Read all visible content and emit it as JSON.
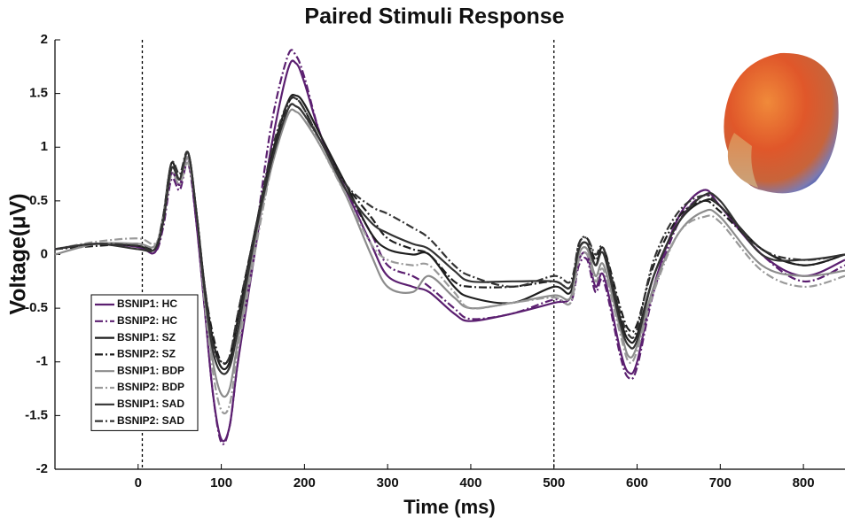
{
  "chart_data": {
    "type": "line",
    "title": "Paired Stimuli Response",
    "x_label": "Time (ms)",
    "y_label": "Voltage(μV)",
    "x": [
      -100,
      -50,
      0,
      20,
      30,
      40,
      50,
      60,
      70,
      80,
      90,
      100,
      110,
      120,
      140,
      160,
      180,
      190,
      200,
      220,
      250,
      280,
      300,
      330,
      350,
      380,
      400,
      450,
      500,
      520,
      530,
      540,
      550,
      560,
      580,
      590,
      600,
      620,
      650,
      680,
      700,
      750,
      800,
      850
    ],
    "series": [
      {
        "name": "BSNIP1: HC",
        "color": "#5b1f70",
        "style": "solid",
        "values": [
          0.05,
          0.1,
          0.07,
          0.02,
          0.3,
          0.75,
          0.65,
          0.9,
          0.3,
          -0.5,
          -1.3,
          -1.72,
          -1.6,
          -1.0,
          0.0,
          1.0,
          1.72,
          1.78,
          1.6,
          1.1,
          0.6,
          0.1,
          -0.2,
          -0.3,
          -0.35,
          -0.55,
          -0.62,
          -0.55,
          -0.45,
          -0.4,
          -0.05,
          0.0,
          -0.3,
          -0.2,
          -0.9,
          -1.1,
          -1.0,
          -0.3,
          0.35,
          0.6,
          0.45,
          0.0,
          -0.2,
          -0.05
        ]
      },
      {
        "name": "BSNIP2: HC",
        "color": "#5b1f70",
        "style": "dashdot",
        "values": [
          0.05,
          0.1,
          0.08,
          0.02,
          0.25,
          0.7,
          0.6,
          0.85,
          0.3,
          -0.5,
          -1.3,
          -1.75,
          -1.6,
          -1.0,
          0.1,
          1.2,
          1.85,
          1.85,
          1.65,
          1.1,
          0.6,
          0.2,
          -0.1,
          -0.2,
          -0.3,
          -0.5,
          -0.6,
          -0.55,
          -0.42,
          -0.45,
          -0.1,
          -0.05,
          -0.35,
          -0.25,
          -0.95,
          -1.15,
          -1.05,
          -0.35,
          0.3,
          0.55,
          0.45,
          0.0,
          -0.25,
          -0.1
        ]
      },
      {
        "name": "BSNIP1: SZ",
        "color": "#1e1e1e",
        "style": "solid",
        "values": [
          0.05,
          0.1,
          0.08,
          0.05,
          0.35,
          0.85,
          0.7,
          0.95,
          0.4,
          -0.3,
          -0.8,
          -1.05,
          -1.0,
          -0.6,
          0.2,
          0.9,
          1.42,
          1.48,
          1.4,
          1.1,
          0.65,
          0.2,
          0.05,
          0.0,
          0.0,
          -0.3,
          -0.4,
          -0.45,
          -0.3,
          -0.35,
          0.05,
          0.1,
          -0.1,
          0.05,
          -0.6,
          -0.8,
          -0.75,
          -0.2,
          0.3,
          0.5,
          0.45,
          0.05,
          -0.1,
          0.0
        ]
      },
      {
        "name": "BSNIP2: SZ",
        "color": "#1e1e1e",
        "style": "dashdot",
        "values": [
          0.05,
          0.08,
          0.1,
          0.05,
          0.3,
          0.8,
          0.7,
          0.9,
          0.4,
          -0.3,
          -0.75,
          -1.0,
          -0.95,
          -0.55,
          0.2,
          0.9,
          1.4,
          1.45,
          1.35,
          1.05,
          0.65,
          0.35,
          0.15,
          0.05,
          0.0,
          -0.25,
          -0.3,
          -0.3,
          -0.25,
          -0.3,
          0.1,
          0.15,
          -0.05,
          0.05,
          -0.5,
          -0.7,
          -0.65,
          -0.1,
          0.35,
          0.5,
          0.4,
          0.05,
          -0.1,
          0.0
        ]
      },
      {
        "name": "BSNIP1: BDP",
        "color": "#8c8c8c",
        "style": "solid",
        "values": [
          0.0,
          0.1,
          0.1,
          0.08,
          0.35,
          0.8,
          0.7,
          0.9,
          0.4,
          -0.4,
          -1.0,
          -1.3,
          -1.25,
          -0.8,
          0.1,
          0.8,
          1.3,
          1.33,
          1.25,
          1.0,
          0.55,
          0.0,
          -0.3,
          -0.35,
          -0.2,
          -0.4,
          -0.5,
          -0.45,
          -0.38,
          -0.4,
          0.0,
          0.05,
          -0.2,
          -0.1,
          -0.7,
          -0.95,
          -0.85,
          -0.3,
          0.2,
          0.4,
          0.35,
          -0.1,
          -0.2,
          -0.15
        ]
      },
      {
        "name": "BSNIP2: BDP",
        "color": "#9a9a9a",
        "style": "dashdot",
        "values": [
          0.05,
          0.12,
          0.15,
          0.1,
          0.3,
          0.75,
          0.65,
          0.85,
          0.4,
          -0.45,
          -1.1,
          -1.45,
          -1.4,
          -0.9,
          0.0,
          0.8,
          1.35,
          1.38,
          1.3,
          1.0,
          0.55,
          0.1,
          -0.05,
          -0.1,
          -0.1,
          -0.35,
          -0.5,
          -0.45,
          -0.4,
          -0.45,
          -0.05,
          0.0,
          -0.25,
          -0.15,
          -0.75,
          -1.0,
          -0.9,
          -0.35,
          0.2,
          0.35,
          0.3,
          -0.15,
          -0.3,
          -0.2
        ]
      },
      {
        "name": "BSNIP1: SAD",
        "color": "#333333",
        "style": "solid",
        "values": [
          0.05,
          0.1,
          0.05,
          0.05,
          0.3,
          0.8,
          0.7,
          0.95,
          0.4,
          -0.35,
          -0.9,
          -1.1,
          -1.05,
          -0.7,
          0.15,
          0.85,
          1.35,
          1.38,
          1.3,
          1.05,
          0.6,
          0.3,
          0.2,
          0.1,
          0.05,
          -0.15,
          -0.25,
          -0.25,
          -0.25,
          -0.3,
          0.05,
          0.1,
          -0.1,
          0.0,
          -0.65,
          -0.85,
          -0.8,
          -0.2,
          0.3,
          0.55,
          0.5,
          0.0,
          -0.05,
          0.0
        ]
      },
      {
        "name": "BSNIP2: SAD",
        "color": "#333333",
        "style": "dashdot",
        "values": [
          0.05,
          0.1,
          0.08,
          0.05,
          0.35,
          0.85,
          0.75,
          0.95,
          0.4,
          -0.3,
          -0.85,
          -1.0,
          -0.95,
          -0.55,
          0.2,
          0.95,
          1.42,
          1.45,
          1.35,
          1.05,
          0.65,
          0.45,
          0.38,
          0.25,
          0.15,
          -0.1,
          -0.2,
          -0.3,
          -0.2,
          -0.25,
          0.1,
          0.15,
          0.0,
          0.05,
          -0.55,
          -0.75,
          -0.7,
          -0.05,
          0.4,
          0.55,
          0.45,
          0.05,
          -0.05,
          0.0
        ]
      }
    ],
    "xlim": [
      -100,
      850
    ],
    "ylim": [
      -2,
      2
    ],
    "xticks": [
      0,
      100,
      200,
      300,
      400,
      500,
      600,
      700,
      800
    ],
    "yticks": [
      -2,
      -1.5,
      -1,
      -0.5,
      0,
      0.5,
      1,
      1.5,
      2
    ],
    "vlines": [
      5,
      500
    ],
    "legend": "lower left"
  }
}
